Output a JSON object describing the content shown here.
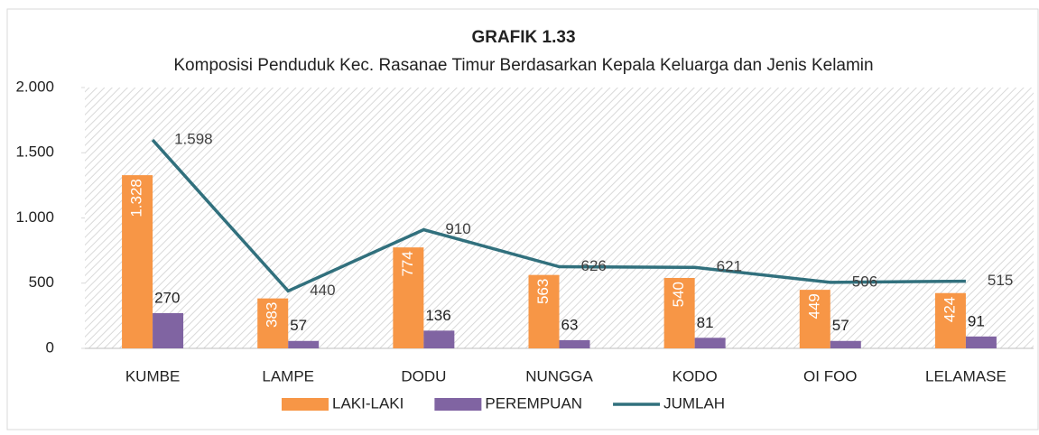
{
  "chart_data": {
    "type": "bar",
    "title": "GRAFIK 1.33",
    "subtitle": "Komposisi Penduduk Kec. Rasanae Timur Berdasarkan Kepala Keluarga dan Jenis Kelamin",
    "categories": [
      "KUMBE",
      "LAMPE",
      "DODU",
      "NUNGGA",
      "KODO",
      "OI FOO",
      "LELAMASE"
    ],
    "series": [
      {
        "name": "LAKI-LAKI",
        "color": "#f79646",
        "type": "bar",
        "values": [
          1328,
          383,
          774,
          563,
          540,
          449,
          424
        ],
        "value_labels": [
          "1.328",
          "383",
          "774",
          "563",
          "540",
          "449",
          "424"
        ]
      },
      {
        "name": "PEREMPUAN",
        "color": "#8064a2",
        "type": "bar",
        "values": [
          270,
          57,
          136,
          63,
          81,
          57,
          91
        ]
      },
      {
        "name": "JUMLAH",
        "color": "#31707d",
        "type": "line",
        "values": [
          1598,
          440,
          910,
          626,
          621,
          506,
          515
        ],
        "value_labels": [
          "1.598",
          "440",
          "910",
          "626",
          "621",
          "506",
          "515"
        ]
      }
    ],
    "ylim": [
      0,
      2000
    ],
    "yticks": [
      0,
      500,
      {
        "value": 1000,
        "label": "1.000"
      },
      {
        "value": 1500,
        "label": "1.500"
      },
      {
        "value": 2000,
        "label": "2.000"
      }
    ],
    "grid": false,
    "legend": "bottom"
  }
}
